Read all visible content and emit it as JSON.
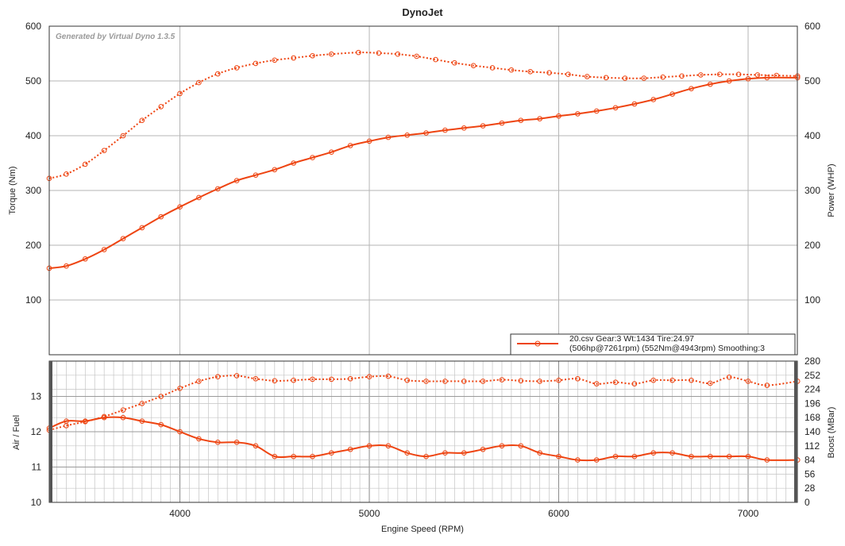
{
  "chart_data": [
    {
      "type": "line",
      "title": "DynoJet",
      "watermark": "Generated by Virtual Dyno 1.3.5",
      "xlabel": "Engine Speed (RPM)",
      "ylabel": "Torque (Nm)",
      "ylabel_right": "Power (WHP)",
      "xlim": [
        3310,
        7260
      ],
      "ylim": [
        0,
        600
      ],
      "y_ticks": [
        100,
        200,
        300,
        400,
        500,
        600
      ],
      "y_ticks_right": [
        100,
        200,
        300,
        400,
        500,
        600
      ],
      "grid": true,
      "legend": {
        "position": "bottom-right",
        "line1": "20.csv Gear:3 Wt:1434 Tire:24.97",
        "line2": "(506hp@7261rpm) (552Nm@4943rpm) Smoothing:3"
      },
      "line_color": "#ee4411",
      "series": [
        {
          "style": "dotted",
          "axis": "left",
          "x": [
            3310,
            3400,
            3500,
            3600,
            3700,
            3800,
            3900,
            4000,
            4100,
            4200,
            4300,
            4400,
            4500,
            4600,
            4700,
            4800,
            4943,
            5050,
            5150,
            5250,
            5350,
            5450,
            5550,
            5650,
            5750,
            5850,
            5950,
            6050,
            6150,
            6250,
            6350,
            6450,
            6550,
            6650,
            6750,
            6850,
            6950,
            7050,
            7150,
            7261
          ],
          "values": [
            322,
            330,
            348,
            373,
            400,
            428,
            453,
            477,
            497,
            513,
            524,
            532,
            538,
            542,
            546,
            549,
            552,
            551,
            549,
            545,
            539,
            533,
            528,
            524,
            520,
            517,
            515,
            512,
            508,
            506,
            505,
            505,
            507,
            509,
            511,
            512,
            512,
            511,
            510,
            509
          ]
        },
        {
          "style": "solid",
          "axis": "right",
          "x": [
            3310,
            3400,
            3500,
            3600,
            3700,
            3800,
            3900,
            4000,
            4100,
            4200,
            4300,
            4400,
            4500,
            4600,
            4700,
            4800,
            4900,
            5000,
            5100,
            5200,
            5300,
            5400,
            5500,
            5600,
            5700,
            5800,
            5900,
            6000,
            6100,
            6200,
            6300,
            6400,
            6500,
            6600,
            6700,
            6800,
            6900,
            7000,
            7100,
            7261
          ],
          "values": [
            158,
            162,
            175,
            192,
            212,
            232,
            252,
            270,
            287,
            303,
            318,
            328,
            338,
            350,
            360,
            370,
            382,
            390,
            397,
            401,
            405,
            410,
            414,
            418,
            423,
            428,
            431,
            436,
            440,
            445,
            451,
            458,
            466,
            476,
            486,
            494,
            500,
            504,
            506,
            506
          ]
        }
      ]
    },
    {
      "type": "line",
      "xlabel": "Engine Speed (RPM)",
      "ylabel": "Air / Fuel",
      "ylabel_right": "Boost (MBar)",
      "xlim": [
        3310,
        7260
      ],
      "ylim": [
        10,
        14
      ],
      "y_ticks": [
        10,
        11,
        12,
        13
      ],
      "y_ticks_right": [
        0,
        28,
        56,
        84,
        112,
        140,
        168,
        196,
        224,
        252,
        280
      ],
      "ylim_right": [
        0,
        280
      ],
      "x_ticks": [
        4000,
        5000,
        6000,
        7000
      ],
      "grid": true,
      "line_color": "#ee4411",
      "series": [
        {
          "style": "dotted",
          "axis": "right",
          "x": [
            3310,
            3400,
            3500,
            3600,
            3700,
            3800,
            3900,
            4000,
            4100,
            4200,
            4300,
            4400,
            4500,
            4600,
            4700,
            4800,
            4900,
            5000,
            5100,
            5200,
            5300,
            5400,
            5500,
            5600,
            5700,
            5800,
            5900,
            6000,
            6100,
            6200,
            6300,
            6400,
            6500,
            6600,
            6700,
            6800,
            6900,
            7000,
            7100,
            7261
          ],
          "values": [
            143,
            152,
            160,
            170,
            183,
            196,
            210,
            226,
            240,
            249,
            251,
            245,
            241,
            242,
            244,
            244,
            245,
            249,
            250,
            242,
            240,
            240,
            240,
            240,
            243,
            241,
            240,
            242,
            245,
            235,
            238,
            235,
            242,
            242,
            242,
            236,
            248,
            240,
            232,
            240
          ]
        },
        {
          "style": "solid",
          "axis": "left",
          "x": [
            3310,
            3400,
            3500,
            3600,
            3700,
            3800,
            3900,
            4000,
            4100,
            4200,
            4300,
            4400,
            4500,
            4600,
            4700,
            4800,
            4900,
            5000,
            5100,
            5200,
            5300,
            5400,
            5500,
            5600,
            5700,
            5800,
            5900,
            6000,
            6100,
            6200,
            6300,
            6400,
            6500,
            6600,
            6700,
            6800,
            6900,
            7000,
            7100,
            7261
          ],
          "values": [
            12.1,
            12.3,
            12.3,
            12.4,
            12.4,
            12.3,
            12.2,
            12.0,
            11.8,
            11.7,
            11.7,
            11.6,
            11.3,
            11.3,
            11.3,
            11.4,
            11.5,
            11.6,
            11.6,
            11.4,
            11.3,
            11.4,
            11.4,
            11.5,
            11.6,
            11.6,
            11.4,
            11.3,
            11.2,
            11.2,
            11.3,
            11.3,
            11.4,
            11.4,
            11.3,
            11.3,
            11.3,
            11.3,
            11.2,
            11.2
          ]
        }
      ]
    }
  ]
}
